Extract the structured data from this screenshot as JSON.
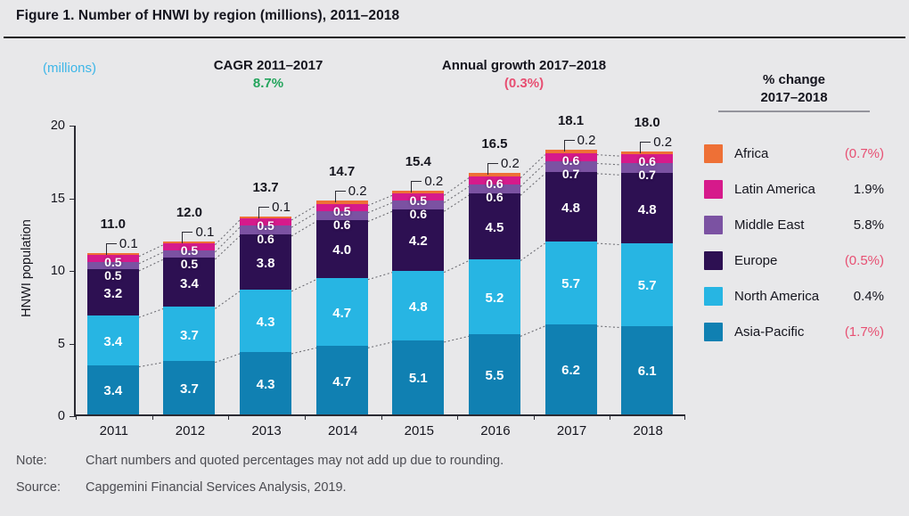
{
  "title": "Figure 1. Number of HNWI by region (millions), 2011–2018",
  "axis_unit_label": "(millions)",
  "cagr": {
    "label": "CAGR 2011–2017",
    "value": "8.7%"
  },
  "annual_growth": {
    "label": "Annual growth 2017–2018",
    "value": "(0.3%)"
  },
  "note": {
    "label": "Note:",
    "text": "Chart numbers and quoted percentages may not add up due to rounding."
  },
  "source": {
    "label": "Source:",
    "text": "Capgemini Financial Services Analysis, 2019."
  },
  "legend": {
    "header_line1": "% change",
    "header_line2": "2017–2018",
    "items": [
      {
        "name": "Africa",
        "color": "#ee7036",
        "change": "(0.7%)",
        "negative": true
      },
      {
        "name": "Latin America",
        "color": "#d61a8b",
        "change": "1.9%",
        "negative": false
      },
      {
        "name": "Middle East",
        "color": "#7b52a2",
        "change": "5.8%",
        "negative": false
      },
      {
        "name": "Europe",
        "color": "#2d1052",
        "change": "(0.5%)",
        "negative": true
      },
      {
        "name": "North America",
        "color": "#27b5e3",
        "change": "0.4%",
        "negative": false
      },
      {
        "name": "Asia-Pacific",
        "color": "#1080b2",
        "change": "(1.7%)",
        "negative": true
      }
    ]
  },
  "chart_data": {
    "type": "bar",
    "stacked": true,
    "title": "Number of HNWI by region (millions), 2011–2018",
    "categories": [
      "2011",
      "2012",
      "2013",
      "2014",
      "2015",
      "2016",
      "2017",
      "2018"
    ],
    "series": [
      {
        "name": "Asia-Pacific",
        "color": "#1080b2",
        "values": [
          3.4,
          3.7,
          4.3,
          4.7,
          5.1,
          5.5,
          6.2,
          6.1
        ]
      },
      {
        "name": "North America",
        "color": "#27b5e3",
        "values": [
          3.4,
          3.7,
          4.3,
          4.7,
          4.8,
          5.2,
          5.7,
          5.7
        ]
      },
      {
        "name": "Europe",
        "color": "#2d1052",
        "values": [
          3.2,
          3.4,
          3.8,
          4.0,
          4.2,
          4.5,
          4.8,
          4.8
        ]
      },
      {
        "name": "Middle East",
        "color": "#7b52a2",
        "values": [
          0.5,
          0.5,
          0.6,
          0.6,
          0.6,
          0.6,
          0.7,
          0.7
        ]
      },
      {
        "name": "Latin America",
        "color": "#d61a8b",
        "values": [
          0.5,
          0.5,
          0.5,
          0.5,
          0.5,
          0.6,
          0.6,
          0.6
        ]
      },
      {
        "name": "Africa",
        "color": "#ee7036",
        "values": [
          0.1,
          0.1,
          0.1,
          0.2,
          0.2,
          0.2,
          0.2,
          0.2
        ]
      }
    ],
    "totals": [
      "11.0",
      "12.0",
      "13.7",
      "14.7",
      "15.4",
      "16.5",
      "18.1",
      "18.0"
    ],
    "africa_callouts": [
      "0.1",
      "0.1",
      "0.1",
      "0.2",
      "0.2",
      "0.2",
      "0.2",
      "0.2"
    ],
    "xlabel": "",
    "ylabel": "HNWI population",
    "yticks": [
      0,
      5,
      10,
      15,
      20
    ],
    "ylim": [
      0,
      20
    ],
    "grid": false,
    "legend_position": "right",
    "cagr_2011_2017": "8.7%",
    "annual_growth_2017_2018": "(0.3%)"
  }
}
